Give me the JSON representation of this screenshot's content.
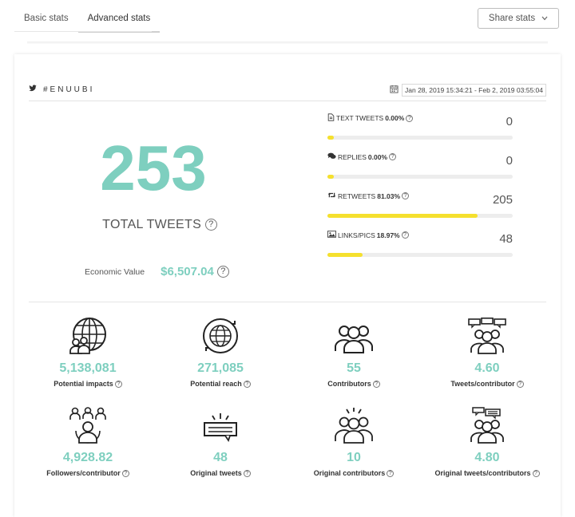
{
  "tabs": [
    {
      "label": "Basic stats",
      "active": false
    },
    {
      "label": "Advanced stats",
      "active": true
    }
  ],
  "share_button": {
    "label": "Share stats",
    "icon": "chevron-down-icon"
  },
  "card": {
    "hashtag": "#ENUUBI",
    "hashtag_icon": "twitter-icon",
    "date_icon": "calendar-icon",
    "date_range": "Jan 28, 2019 15:34:21 - Feb 2, 2019 03:55:04"
  },
  "total": {
    "value": "253",
    "label": "TOTAL TWEETS"
  },
  "economic": {
    "label": "Economic Value",
    "value": "$6,507.04"
  },
  "breakdown": [
    {
      "icon": "document-icon",
      "label": "TEXT TWEETS",
      "percent": "0.00%",
      "value": "0",
      "fill": 0.035
    },
    {
      "icon": "comments-icon",
      "label": "REPLIES",
      "percent": "0.00%",
      "value": "0",
      "fill": 0.035
    },
    {
      "icon": "retweet-icon",
      "label": "RETWEETS",
      "percent": "81.03%",
      "value": "205",
      "fill": 0.81
    },
    {
      "icon": "image-icon",
      "label": "LINKS/PICS",
      "percent": "18.97%",
      "value": "48",
      "fill": 0.19
    }
  ],
  "stats": [
    {
      "icon": "globe-people-icon",
      "value": "5,138,081",
      "label": "Potential impacts"
    },
    {
      "icon": "globe-refresh-icon",
      "value": "271,085",
      "label": "Potential reach"
    },
    {
      "icon": "group-icon",
      "value": "55",
      "label": "Contributors"
    },
    {
      "icon": "group-chat-icon",
      "value": "4.60",
      "label": "Tweets/contributor"
    },
    {
      "icon": "followers-icon",
      "value": "4,928.82",
      "label": "Followers/contributor"
    },
    {
      "icon": "message-icon",
      "value": "48",
      "label": "Original tweets"
    },
    {
      "icon": "group-highlight-icon",
      "value": "10",
      "label": "Original contributors"
    },
    {
      "icon": "group-messages-icon",
      "value": "4.80",
      "label": "Original tweets/contributors"
    }
  ],
  "colors": {
    "accent": "#7ecfbf",
    "bar": "#f5e02e",
    "track": "#ededed"
  }
}
